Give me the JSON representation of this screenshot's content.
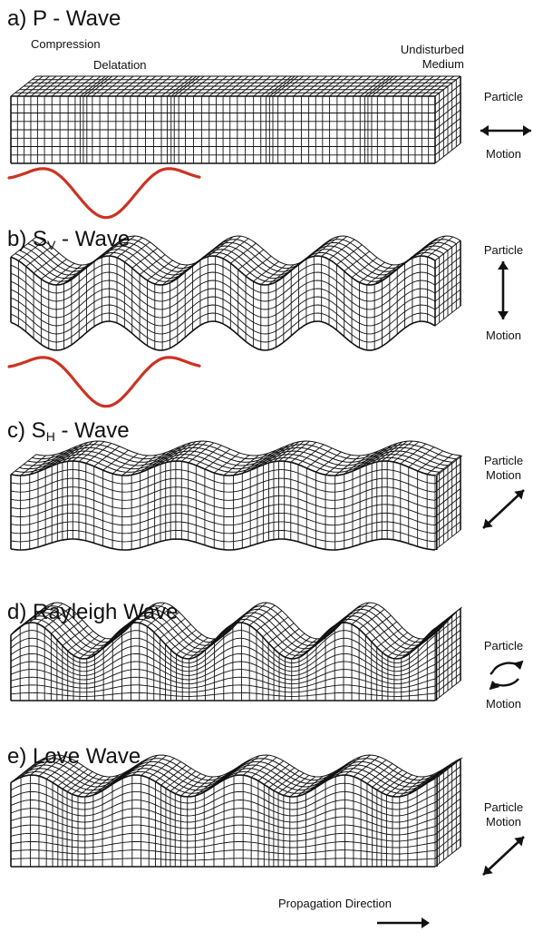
{
  "panels": [
    {
      "id": "a",
      "letter": "a)",
      "name": "P - Wave",
      "sub": "",
      "motion": {
        "top": "Particle",
        "bottom": "Motion"
      }
    },
    {
      "id": "b",
      "letter": "b)",
      "name": "S",
      "sub": "V",
      "suffix": " - Wave",
      "motion": {
        "top": "Particle",
        "bottom": "Motion"
      }
    },
    {
      "id": "c",
      "letter": "c)",
      "name": "S",
      "sub": "H",
      "suffix": " - Wave",
      "motion": {
        "top": "Particle",
        "bottom": "Motion"
      }
    },
    {
      "id": "d",
      "letter": "d)",
      "name": "Rayleigh Wave",
      "sub": "",
      "motion": {
        "top": "Particle",
        "bottom": "Motion"
      }
    },
    {
      "id": "e",
      "letter": "e)",
      "name": "Love Wave",
      "sub": "",
      "motion": {
        "top": "Particle",
        "bottom": "Motion"
      }
    }
  ],
  "annotations": {
    "compression": "Compression",
    "dilatation": "Delatation",
    "undisturbed_line1": "Undisturbed",
    "undisturbed_line2": "Medium",
    "propagation": "Propagation Direction"
  },
  "colors": {
    "waveform": "#cc3322",
    "grid": "#111111"
  }
}
